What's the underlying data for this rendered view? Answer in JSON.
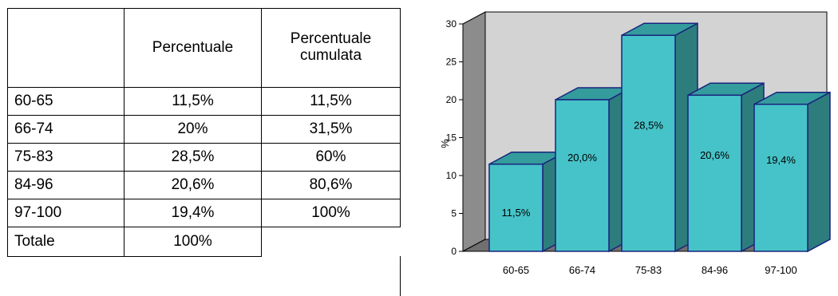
{
  "table": {
    "headers": [
      "",
      "Percentuale",
      "Percentuale cumulata"
    ],
    "rows": [
      [
        "60-65",
        "11,5%",
        "11,5%"
      ],
      [
        "66-74",
        "20%",
        "31,5%"
      ],
      [
        "75-83",
        "28,5%",
        "60%"
      ],
      [
        "84-96",
        "20,6%",
        "80,6%"
      ],
      [
        "97-100",
        "19,4%",
        "100%"
      ],
      [
        "Totale",
        "100%",
        ""
      ]
    ]
  },
  "chart_data": {
    "type": "bar",
    "categories": [
      "60-65",
      "66-74",
      "75-83",
      "84-96",
      "97-100"
    ],
    "values": [
      11.5,
      20.0,
      28.5,
      20.6,
      19.4
    ],
    "data_labels": [
      "11,5%",
      "20,0%",
      "28,5%",
      "20,6%",
      "19,4%"
    ],
    "ylabel": "%",
    "ylim": [
      0,
      30
    ],
    "yticks": [
      0,
      5,
      10,
      15,
      20,
      25,
      30
    ],
    "grid": false,
    "three_d": true,
    "colors": {
      "bar_front": "#46C3C8",
      "bar_side": "#2D7D7D",
      "bar_top": "#349C9C",
      "bar_edge": "#1A237E",
      "wall": "#D3D3D3",
      "wall_side": "#8C8C8C",
      "floor": "#707070"
    }
  }
}
